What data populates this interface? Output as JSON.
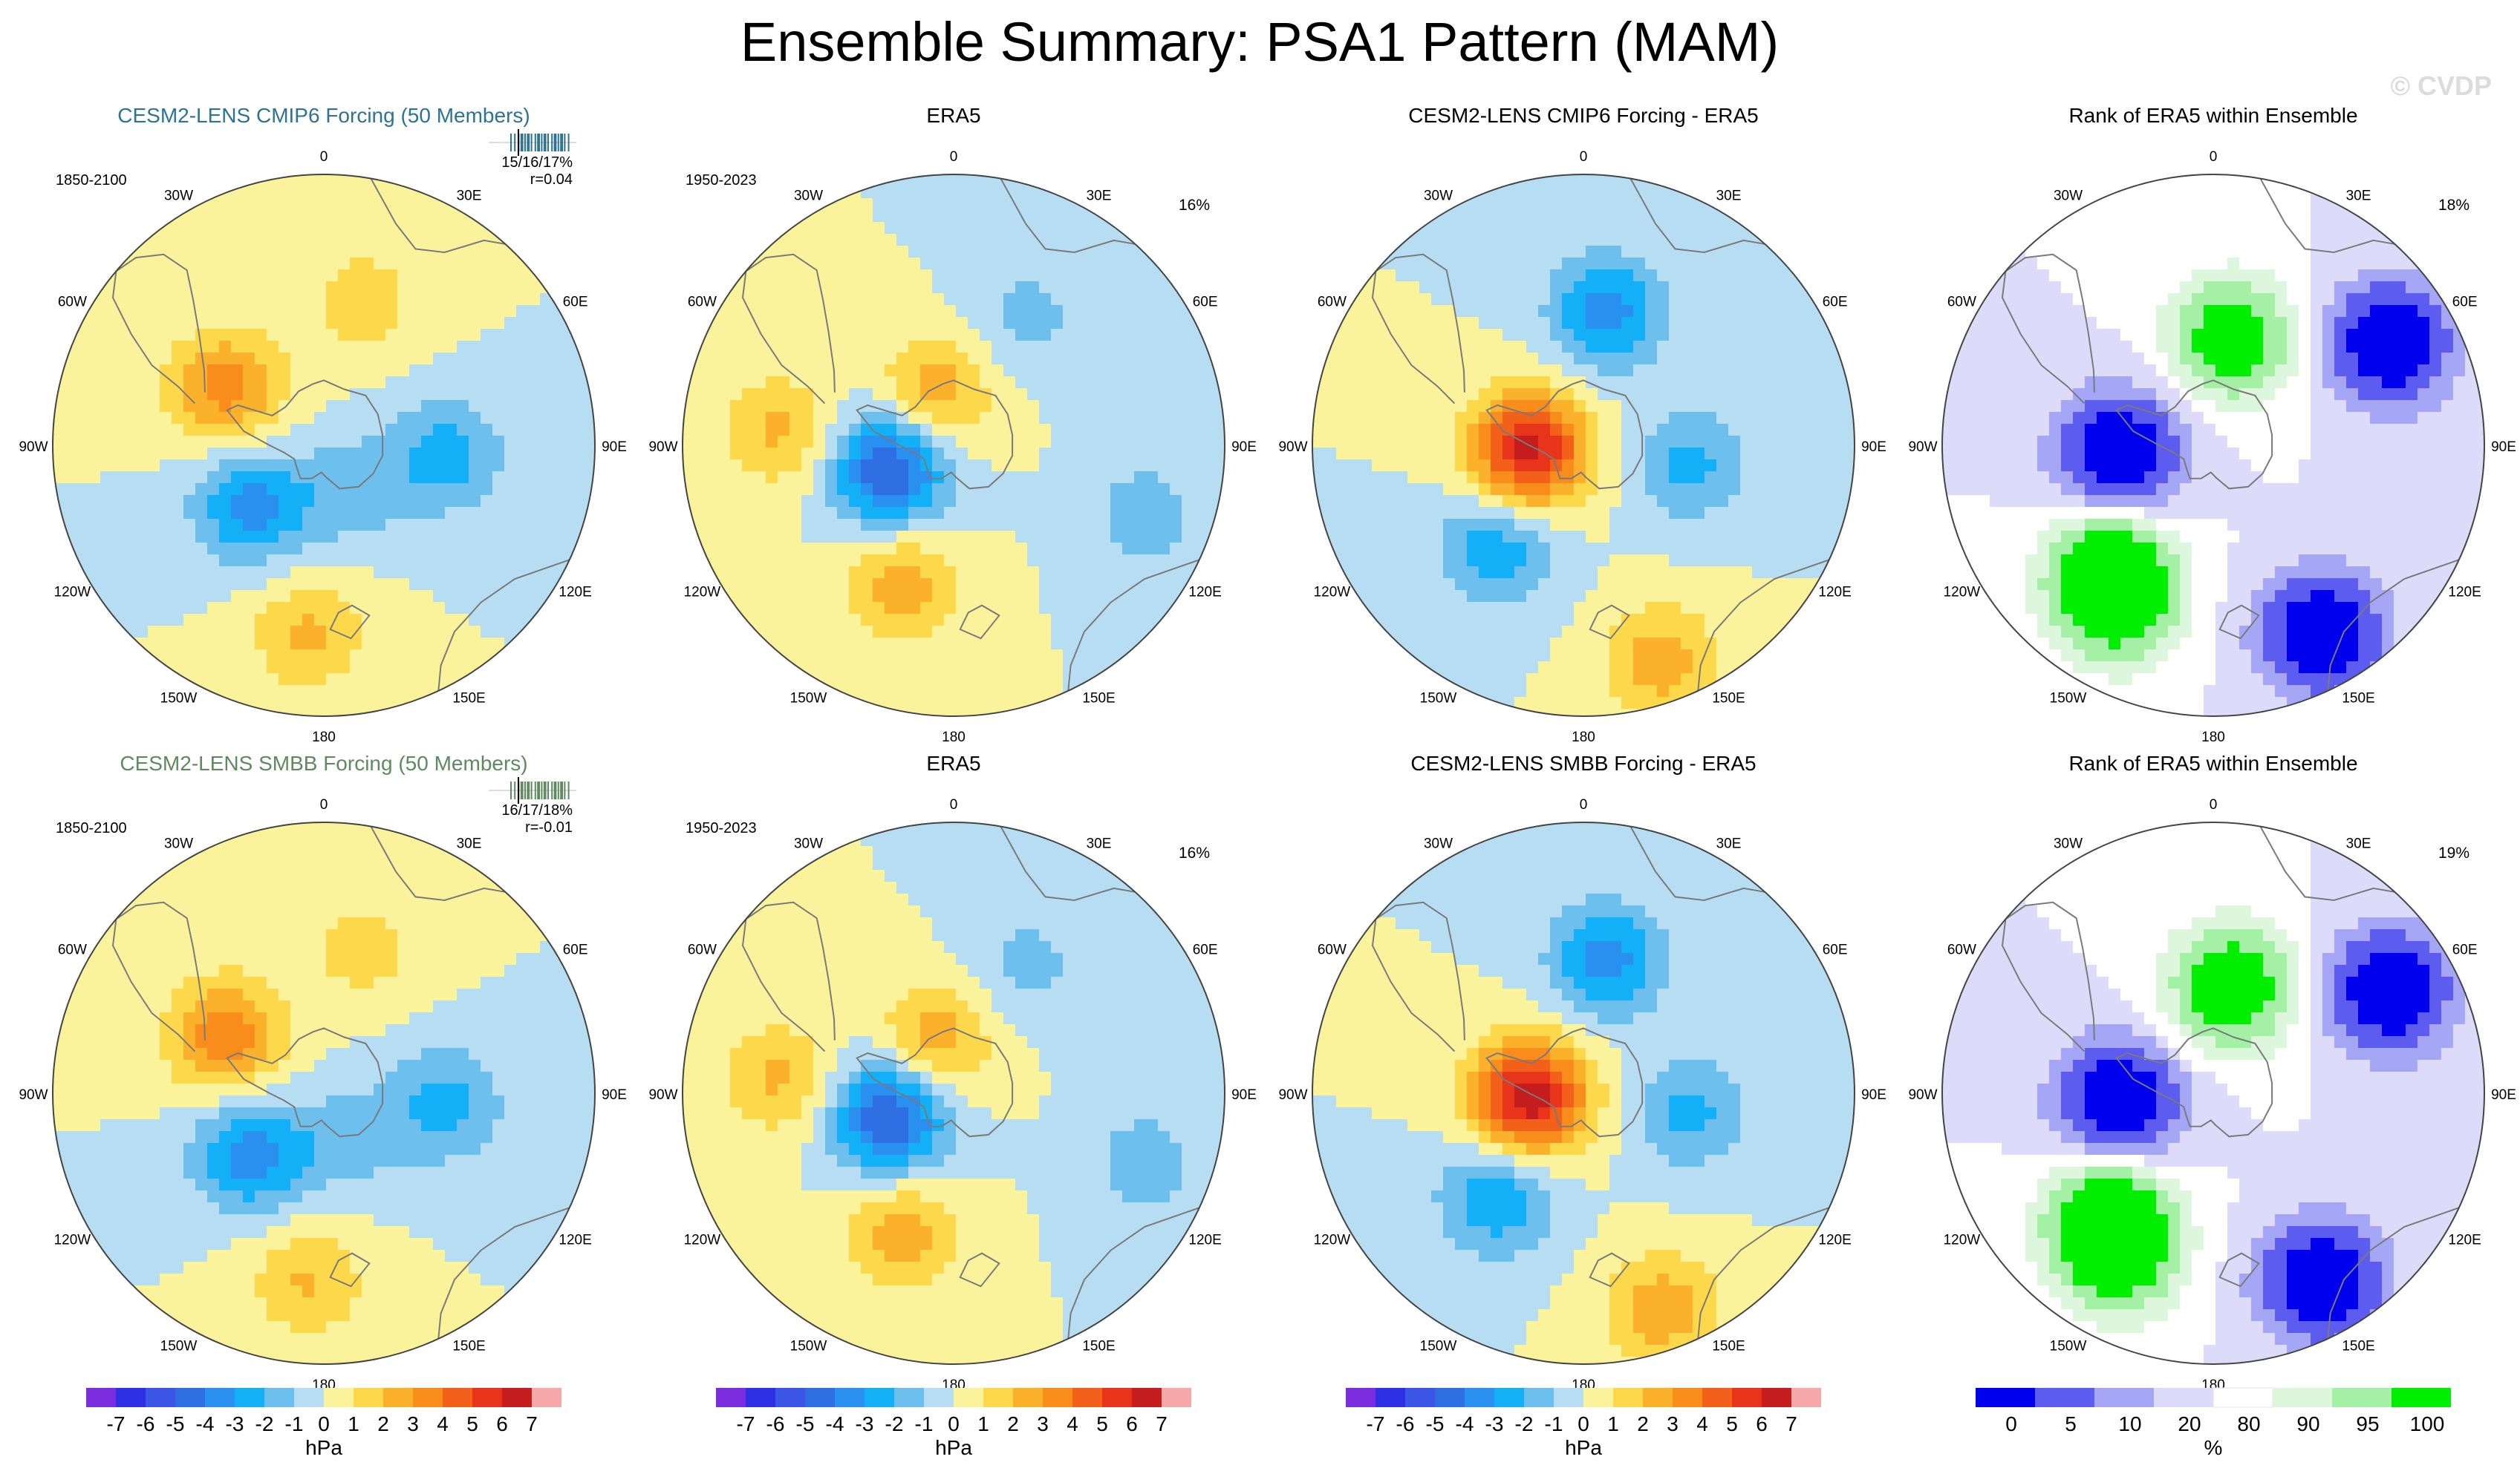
{
  "title": "Ensemble Summary: PSA1 Pattern (MAM)",
  "watermark": "© CVDP",
  "colors": {
    "hpa_levels": [
      "#7b2ee0",
      "#2f2fe5",
      "#3b56e6",
      "#2e6fe4",
      "#2a90f0",
      "#13b0f7",
      "#6dbfee",
      "#b6ddf1",
      "#fbf39b",
      "#fdd84a",
      "#fbb12b",
      "#f88d1b",
      "#f2601a",
      "#e8341a",
      "#c51d1d",
      "#f7a9a9"
    ],
    "rank_levels": [
      "#0000ee",
      "#5c5cf0",
      "#a6a6f6",
      "#dcdcfa",
      "#ffffff",
      "#dcf7dc",
      "#a4f0a4",
      "#00ee00"
    ],
    "coast": "#7a7a7a"
  },
  "colorbars": {
    "hpa_ticks": [
      "-7",
      "-6",
      "-5",
      "-4",
      "-3",
      "-2",
      "-1",
      "0",
      "1",
      "2",
      "3",
      "4",
      "5",
      "6",
      "7"
    ],
    "hpa_unit": "hPa",
    "rank_ticks": [
      "0",
      "5",
      "10",
      "20",
      "80",
      "90",
      "95",
      "100"
    ],
    "rank_unit": "%"
  },
  "longitude_labels": [
    "0",
    "30E",
    "60E",
    "90E",
    "120E",
    "150E",
    "180",
    "150W",
    "120W",
    "90W",
    "60W",
    "30W"
  ],
  "chart_data": [
    {
      "type": "polar-contour",
      "id": "p1",
      "title": "CESM2-LENS CMIP6 Forcing (50 Members)",
      "title_color": "#2e7391",
      "period": "1850-2100",
      "stat": "15/16/17%",
      "corr": "r=0.04",
      "strip_color": "#2e7391",
      "field": [
        {
          "lon": 15,
          "r": 0.55,
          "amp": 1.6
        },
        {
          "lon": -60,
          "r": 0.42,
          "amp": 3.5
        },
        {
          "lon": -130,
          "r": 0.35,
          "amp": -3.4
        },
        {
          "lon": 95,
          "r": 0.45,
          "amp": -2.5
        },
        {
          "lon": -175,
          "r": 0.7,
          "amp": 2.2
        },
        {
          "lon": 150,
          "r": 0.2,
          "amp": -1.5
        }
      ],
      "unit": "hPa"
    },
    {
      "type": "polar-contour",
      "id": "p2",
      "title": "ERA5",
      "title_color": "#000000",
      "period": "1950-2023",
      "pct": "16%",
      "field": [
        {
          "lon": -110,
          "r": 0.25,
          "amp": -5.2
        },
        {
          "lon": -20,
          "r": 0.2,
          "amp": 2.8
        },
        {
          "lon": -160,
          "r": 0.55,
          "amp": 2.6
        },
        {
          "lon": -85,
          "r": 0.65,
          "amp": 2.2
        },
        {
          "lon": 110,
          "r": 0.75,
          "amp": -1.6
        },
        {
          "lon": 30,
          "r": 0.55,
          "amp": -1.4
        }
      ],
      "unit": "hPa"
    },
    {
      "type": "polar-contour",
      "id": "p3",
      "title": "CESM2-LENS CMIP6 Forcing - ERA5",
      "title_color": "#000000",
      "field": [
        {
          "lon": -95,
          "r": 0.2,
          "amp": 6.5
        },
        {
          "lon": 10,
          "r": 0.5,
          "amp": -3.4
        },
        {
          "lon": -140,
          "r": 0.5,
          "amp": -2.8
        },
        {
          "lon": 100,
          "r": 0.4,
          "amp": -2.3
        },
        {
          "lon": 160,
          "r": 0.85,
          "amp": 2.6
        }
      ],
      "unit": "hPa"
    },
    {
      "type": "polar-rank",
      "id": "p4",
      "title": "Rank of ERA5 within Ensemble",
      "title_color": "#000000",
      "pct": "18%",
      "field": [
        {
          "lon": -95,
          "r": 0.35,
          "amp": -1.0
        },
        {
          "lon": 60,
          "r": 0.75,
          "amp": -1.0
        },
        {
          "lon": 150,
          "r": 0.8,
          "amp": -1.0
        },
        {
          "lon": -140,
          "r": 0.6,
          "amp": 1.0
        },
        {
          "lon": 10,
          "r": 0.4,
          "amp": 0.9
        },
        {
          "lon": -150,
          "r": 0.7,
          "amp": 0.6
        }
      ],
      "unit": "%"
    },
    {
      "type": "polar-contour",
      "id": "p5",
      "title": "CESM2-LENS SMBB Forcing (50 Members)",
      "title_color": "#5f8a5f",
      "period": "1850-2100",
      "stat": "16/17/18%",
      "corr": "r=-0.01",
      "strip_color": "#5f8a5f",
      "field": [
        {
          "lon": 15,
          "r": 0.55,
          "amp": 1.5
        },
        {
          "lon": -60,
          "r": 0.42,
          "amp": 3.8
        },
        {
          "lon": -130,
          "r": 0.35,
          "amp": -3.6
        },
        {
          "lon": 95,
          "r": 0.45,
          "amp": -2.4
        },
        {
          "lon": -175,
          "r": 0.7,
          "amp": 2.1
        },
        {
          "lon": 150,
          "r": 0.2,
          "amp": -1.4
        }
      ],
      "unit": "hPa"
    },
    {
      "type": "polar-contour",
      "id": "p6",
      "title": "ERA5",
      "title_color": "#000000",
      "period": "1950-2023",
      "pct": "16%",
      "field": [
        {
          "lon": -110,
          "r": 0.25,
          "amp": -5.2
        },
        {
          "lon": -20,
          "r": 0.2,
          "amp": 2.8
        },
        {
          "lon": -160,
          "r": 0.55,
          "amp": 2.6
        },
        {
          "lon": -85,
          "r": 0.65,
          "amp": 2.2
        },
        {
          "lon": 110,
          "r": 0.75,
          "amp": -1.6
        },
        {
          "lon": 30,
          "r": 0.55,
          "amp": -1.4
        }
      ],
      "unit": "hPa"
    },
    {
      "type": "polar-contour",
      "id": "p7",
      "title": "CESM2-LENS SMBB Forcing - ERA5",
      "title_color": "#000000",
      "field": [
        {
          "lon": -95,
          "r": 0.2,
          "amp": 6.8
        },
        {
          "lon": 10,
          "r": 0.5,
          "amp": -3.4
        },
        {
          "lon": -140,
          "r": 0.5,
          "amp": -3.0
        },
        {
          "lon": 100,
          "r": 0.4,
          "amp": -2.3
        },
        {
          "lon": 160,
          "r": 0.85,
          "amp": 2.7
        }
      ],
      "unit": "hPa"
    },
    {
      "type": "polar-rank",
      "id": "p8",
      "title": "Rank of ERA5 within Ensemble",
      "title_color": "#000000",
      "pct": "19%",
      "field": [
        {
          "lon": -95,
          "r": 0.35,
          "amp": -1.0
        },
        {
          "lon": 60,
          "r": 0.75,
          "amp": -1.0
        },
        {
          "lon": 150,
          "r": 0.8,
          "amp": -1.0
        },
        {
          "lon": -140,
          "r": 0.6,
          "amp": 1.0
        },
        {
          "lon": 10,
          "r": 0.4,
          "amp": 1.0
        },
        {
          "lon": -150,
          "r": 0.7,
          "amp": 0.7
        }
      ],
      "unit": "%"
    }
  ]
}
